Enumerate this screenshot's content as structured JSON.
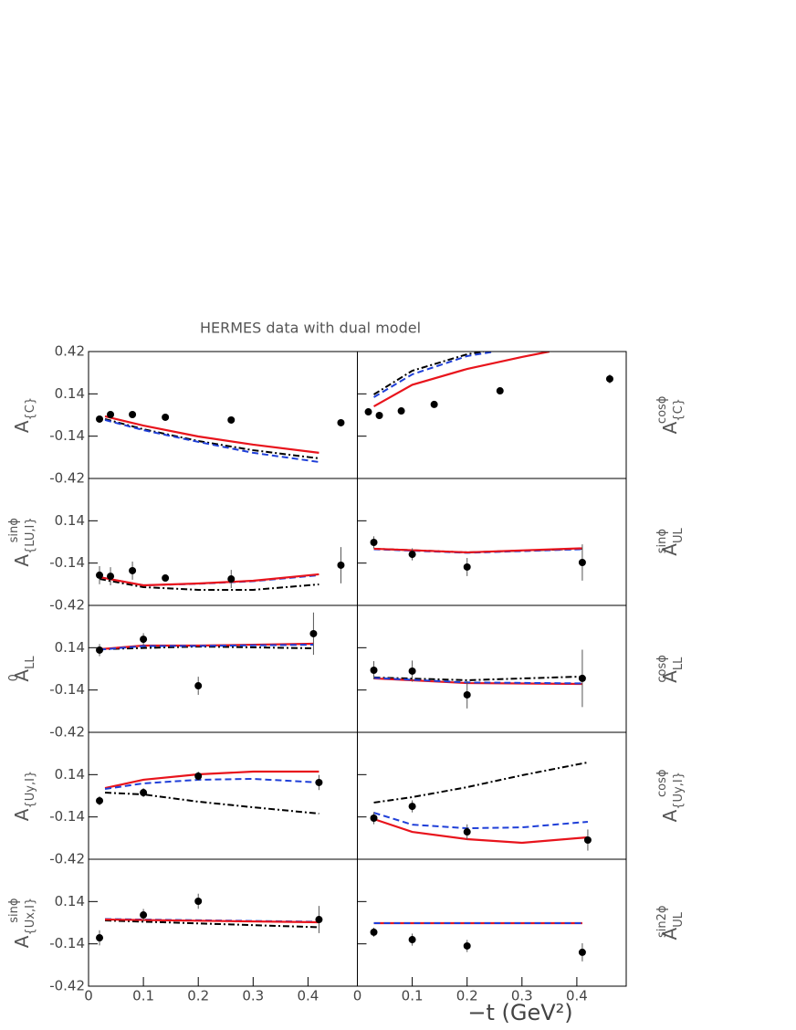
{
  "title": "HERMES data with dual model",
  "xlabel": "−t (GeV²)",
  "chart_data": [
    {
      "type": "line",
      "ylabel": {
        "text": "A",
        "sub": "{C}"
      },
      "xlim": [
        0,
        0.49
      ],
      "ylim": [
        -0.42,
        0.42
      ],
      "yticks": [
        -0.42,
        -0.14,
        0.14,
        0.42
      ],
      "points": {
        "color": "#000000",
        "x": [
          0.02,
          0.04,
          0.08,
          0.14,
          0.26,
          0.46
        ],
        "values": [
          -0.027,
          0.003,
          0.003,
          -0.015,
          -0.033,
          -0.051
        ],
        "errors": [
          0.01,
          0.01,
          0.01,
          0.01,
          0.01,
          0.02
        ]
      },
      "series": [
        {
          "color": "#e8141c",
          "style": "solid",
          "x": [
            0.03,
            0.1,
            0.2,
            0.3,
            0.42
          ],
          "values": [
            -0.009,
            -0.07,
            -0.142,
            -0.196,
            -0.25
          ]
        },
        {
          "color": "#000000",
          "style": "dashdot",
          "x": [
            0.03,
            0.1,
            0.2,
            0.3,
            0.42
          ],
          "values": [
            -0.027,
            -0.094,
            -0.172,
            -0.233,
            -0.287
          ]
        },
        {
          "color": "#1f3fd8",
          "style": "dashed",
          "x": [
            0.03,
            0.1,
            0.2,
            0.3,
            0.42
          ],
          "values": [
            -0.033,
            -0.1,
            -0.178,
            -0.25,
            -0.311
          ]
        }
      ]
    },
    {
      "type": "line",
      "ylabel": {
        "text": "A",
        "sub": "{C}",
        "sup": "cosϕ"
      },
      "xlim": [
        0,
        0.49
      ],
      "ylim": [
        -0.42,
        0.42
      ],
      "yticks": [
        -0.42,
        -0.14,
        0.14,
        0.42
      ],
      "points": {
        "color": "#000000",
        "x": [
          0.02,
          0.04,
          0.08,
          0.14,
          0.26,
          0.46
        ],
        "values": [
          0.021,
          -0.003,
          0.027,
          0.07,
          0.16,
          0.239
        ],
        "errors": [
          0.01,
          0.01,
          0.01,
          0.01,
          0.02,
          0.03
        ]
      },
      "series": [
        {
          "color": "#e8141c",
          "style": "solid",
          "x": [
            0.03,
            0.1,
            0.2,
            0.3,
            0.35
          ],
          "values": [
            0.057,
            0.2,
            0.305,
            0.384,
            0.42
          ]
        },
        {
          "color": "#000000",
          "style": "dashdot",
          "x": [
            0.03,
            0.1,
            0.2,
            0.23
          ],
          "values": [
            0.136,
            0.293,
            0.402,
            0.42
          ]
        },
        {
          "color": "#1f3fd8",
          "style": "dashed",
          "x": [
            0.03,
            0.1,
            0.2,
            0.25
          ],
          "values": [
            0.118,
            0.269,
            0.39,
            0.42
          ]
        }
      ]
    },
    {
      "type": "line",
      "ylabel": {
        "text": "A",
        "sub": "{LU,I}",
        "sup": "sinϕ"
      },
      "xlim": [
        0,
        0.49
      ],
      "ylim": [
        -0.42,
        0.42
      ],
      "yticks": [
        -0.42,
        -0.14,
        0.14
      ],
      "points": {
        "color": "#000000",
        "x": [
          0.02,
          0.04,
          0.08,
          0.14,
          0.26,
          0.46
        ],
        "values": [
          -0.22,
          -0.227,
          -0.19,
          -0.239,
          -0.245,
          -0.154
        ],
        "errors": [
          0.06,
          0.06,
          0.06,
          0.02,
          0.06,
          0.12
        ]
      },
      "series": [
        {
          "color": "#000000",
          "style": "dashdot",
          "x": [
            0.02,
            0.1,
            0.2,
            0.3,
            0.42
          ],
          "values": [
            -0.245,
            -0.299,
            -0.317,
            -0.317,
            -0.281
          ]
        },
        {
          "color": "#1f3fd8",
          "style": "dashed",
          "x": [
            0.02,
            0.1,
            0.2,
            0.3,
            0.42
          ],
          "values": [
            -0.233,
            -0.287,
            -0.277,
            -0.26,
            -0.22
          ]
        },
        {
          "color": "#e8141c",
          "style": "solid",
          "x": [
            0.02,
            0.1,
            0.2,
            0.3,
            0.42
          ],
          "values": [
            -0.233,
            -0.287,
            -0.275,
            -0.257,
            -0.214
          ]
        }
      ]
    },
    {
      "type": "line",
      "ylabel": {
        "text": "A",
        "sub": "UL",
        "sup": "sinϕ"
      },
      "xlim": [
        0,
        0.49
      ],
      "ylim": [
        -0.42,
        0.42
      ],
      "yticks": [
        -0.42,
        -0.14,
        0.14
      ],
      "points": {
        "color": "#000000",
        "x": [
          0.03,
          0.1,
          0.2,
          0.41
        ],
        "values": [
          -0.003,
          -0.082,
          -0.166,
          -0.136
        ],
        "errors": [
          0.04,
          0.04,
          0.06,
          0.12
        ]
      },
      "series": [
        {
          "color": "#000000",
          "style": "dashdot",
          "x": [
            0.03,
            0.2,
            0.41
          ],
          "values": [
            -0.045,
            -0.069,
            -0.045
          ]
        },
        {
          "color": "#1f3fd8",
          "style": "dashed",
          "x": [
            0.03,
            0.2,
            0.41
          ],
          "values": [
            -0.048,
            -0.072,
            -0.048
          ]
        },
        {
          "color": "#e8141c",
          "style": "solid",
          "x": [
            0.03,
            0.2,
            0.41
          ],
          "values": [
            -0.045,
            -0.069,
            -0.042
          ]
        }
      ]
    },
    {
      "type": "line",
      "ylabel": {
        "text": "A",
        "sub": "LL",
        "sup": "0"
      },
      "xlim": [
        0,
        0.49
      ],
      "ylim": [
        -0.42,
        0.42
      ],
      "yticks": [
        -0.42,
        -0.14,
        0.14
      ],
      "points": {
        "color": "#000000",
        "x": [
          0.02,
          0.1,
          0.2,
          0.41
        ],
        "values": [
          0.124,
          0.196,
          -0.112,
          0.233
        ],
        "errors": [
          0.04,
          0.04,
          0.06,
          0.14
        ]
      },
      "series": [
        {
          "color": "#000000",
          "style": "dashdot",
          "x": [
            0.02,
            0.2,
            0.41
          ],
          "values": [
            0.13,
            0.148,
            0.136
          ]
        },
        {
          "color": "#e8141c",
          "style": "solid",
          "x": [
            0.02,
            0.1,
            0.2,
            0.41
          ],
          "values": [
            0.13,
            0.154,
            0.154,
            0.166
          ]
        },
        {
          "color": "#1f3fd8",
          "style": "dashed",
          "x": [
            0.02,
            0.1,
            0.2,
            0.41
          ],
          "values": [
            0.127,
            0.151,
            0.152,
            0.16
          ]
        }
      ]
    },
    {
      "type": "line",
      "ylabel": {
        "text": "A",
        "sub": "LL",
        "sup": "cosϕ"
      },
      "xlim": [
        0,
        0.49
      ],
      "ylim": [
        -0.42,
        0.42
      ],
      "yticks": [
        -0.42,
        -0.14,
        0.14
      ],
      "points": {
        "color": "#000000",
        "x": [
          0.03,
          0.1,
          0.2,
          0.41
        ],
        "values": [
          -0.009,
          -0.015,
          -0.172,
          -0.063
        ],
        "errors": [
          0.06,
          0.07,
          0.09,
          0.19
        ]
      },
      "series": [
        {
          "color": "#000000",
          "style": "dashdot",
          "x": [
            0.03,
            0.2,
            0.41
          ],
          "values": [
            -0.057,
            -0.075,
            -0.051
          ]
        },
        {
          "color": "#e8141c",
          "style": "solid",
          "x": [
            0.03,
            0.2,
            0.41
          ],
          "values": [
            -0.063,
            -0.094,
            -0.1
          ]
        },
        {
          "color": "#1f3fd8",
          "style": "dashed",
          "x": [
            0.03,
            0.2,
            0.41
          ],
          "values": [
            -0.06,
            -0.09,
            -0.096
          ]
        }
      ]
    },
    {
      "type": "line",
      "ylabel": {
        "text": "A",
        "sub": "{Uy,I}"
      },
      "xlim": [
        0,
        0.49
      ],
      "ylim": [
        -0.42,
        0.42
      ],
      "yticks": [
        -0.42,
        -0.14,
        0.14
      ],
      "points": {
        "color": "#000000",
        "x": [
          0.02,
          0.1,
          0.2,
          0.42
        ],
        "values": [
          -0.033,
          0.021,
          0.13,
          0.088
        ],
        "errors": [
          0.03,
          0.03,
          0.03,
          0.05
        ]
      },
      "series": [
        {
          "color": "#e8141c",
          "style": "solid",
          "x": [
            0.03,
            0.1,
            0.2,
            0.3,
            0.42
          ],
          "values": [
            0.051,
            0.106,
            0.142,
            0.16,
            0.16
          ]
        },
        {
          "color": "#1f3fd8",
          "style": "dashed",
          "x": [
            0.03,
            0.1,
            0.2,
            0.3,
            0.42
          ],
          "values": [
            0.045,
            0.082,
            0.106,
            0.112,
            0.088
          ]
        },
        {
          "color": "#000000",
          "style": "dashdot",
          "x": [
            0.03,
            0.1,
            0.2,
            0.3,
            0.42
          ],
          "values": [
            0.021,
            0.009,
            -0.039,
            -0.076,
            -0.118
          ]
        }
      ]
    },
    {
      "type": "line",
      "ylabel": {
        "text": "A",
        "sub": "{Uy,I}",
        "sup": "cosϕ"
      },
      "xlim": [
        0,
        0.49
      ],
      "ylim": [
        -0.42,
        0.42
      ],
      "yticks": [
        -0.42,
        -0.14,
        0.14
      ],
      "points": {
        "color": "#000000",
        "x": [
          0.03,
          0.1,
          0.2,
          0.42
        ],
        "values": [
          -0.148,
          -0.07,
          -0.239,
          -0.293
        ],
        "errors": [
          0.04,
          0.04,
          0.05,
          0.07
        ]
      },
      "series": [
        {
          "color": "#e8141c",
          "style": "solid",
          "x": [
            0.03,
            0.1,
            0.2,
            0.3,
            0.42
          ],
          "values": [
            -0.154,
            -0.239,
            -0.287,
            -0.311,
            -0.275
          ]
        },
        {
          "color": "#1f3fd8",
          "style": "dashed",
          "x": [
            0.03,
            0.1,
            0.2,
            0.3,
            0.42
          ],
          "values": [
            -0.112,
            -0.191,
            -0.215,
            -0.209,
            -0.172
          ]
        },
        {
          "color": "#000000",
          "style": "dashdot",
          "x": [
            0.03,
            0.1,
            0.2,
            0.3,
            0.42
          ],
          "values": [
            -0.045,
            -0.009,
            0.057,
            0.136,
            0.221
          ]
        }
      ]
    },
    {
      "type": "line",
      "ylabel": {
        "text": "A",
        "sub": "{Ux,I}",
        "sup": "sinϕ"
      },
      "xlim": [
        0,
        0.49
      ],
      "ylim": [
        -0.42,
        0.42
      ],
      "yticks": [
        -0.42,
        -0.14,
        0.14
      ],
      "xticks": [
        0,
        0.1,
        0.2,
        0.3,
        0.4
      ],
      "points": {
        "color": "#000000",
        "x": [
          0.02,
          0.1,
          0.2,
          0.42
        ],
        "values": [
          -0.1,
          0.051,
          0.142,
          0.021
        ],
        "errors": [
          0.05,
          0.04,
          0.05,
          0.09
        ]
      },
      "series": [
        {
          "color": "#000000",
          "style": "dashdot",
          "x": [
            0.03,
            0.42
          ],
          "values": [
            0.015,
            -0.03
          ]
        },
        {
          "color": "#1f3fd8",
          "style": "dashed",
          "x": [
            0.03,
            0.42
          ],
          "values": [
            0.024,
            0.006
          ]
        },
        {
          "color": "#e8141c",
          "style": "solid",
          "x": [
            0.03,
            0.42
          ],
          "values": [
            0.021,
            0.003
          ]
        }
      ]
    },
    {
      "type": "line",
      "ylabel": {
        "text": "A",
        "sub": "UL",
        "sup": "sin2ϕ"
      },
      "xlim": [
        0,
        0.49
      ],
      "ylim": [
        -0.42,
        0.42
      ],
      "yticks": [
        -0.42,
        -0.14,
        0.14
      ],
      "xticks": [
        0,
        0.1,
        0.2,
        0.3,
        0.4
      ],
      "points": {
        "color": "#000000",
        "x": [
          0.03,
          0.1,
          0.2,
          0.41
        ],
        "values": [
          -0.063,
          -0.112,
          -0.154,
          -0.196
        ],
        "errors": [
          0.03,
          0.04,
          0.04,
          0.06
        ]
      },
      "series": [
        {
          "color": "#e8141c",
          "style": "solid",
          "x": [
            0.03,
            0.41
          ],
          "values": [
            -0.003,
            -0.003
          ]
        },
        {
          "color": "#1f3fd8",
          "style": "dashed",
          "x": [
            0.03,
            0.41
          ],
          "values": [
            -0.003,
            -0.003
          ]
        }
      ]
    }
  ]
}
